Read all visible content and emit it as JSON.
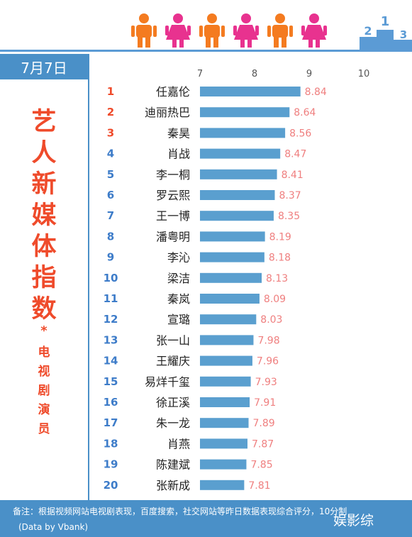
{
  "date_label": "7月7日",
  "title_big": [
    "艺",
    "人",
    "新",
    "媒",
    "体",
    "指",
    "数"
  ],
  "title_asterisk": "*",
  "title_small": [
    "电",
    "视",
    "剧",
    "演",
    "员"
  ],
  "footer_note": "备注：根据视频网站电视剧表现，百度搜索，社交网站等昨日数据表现综合评分，10分制",
  "footer_source": "(Data by Vbank)",
  "watermark": "娱影综",
  "colors": {
    "accent": "#4a90c8",
    "bar": "#5a9fcf",
    "title": "#ef4b2b",
    "value": "#ef7f7f",
    "rank_top": "#ef4b2b",
    "rank": "#3d7cc9"
  },
  "chart_data": {
    "type": "bar",
    "orientation": "horizontal",
    "xlim": [
      7,
      10
    ],
    "x_ticks": [
      7,
      8,
      9,
      10
    ],
    "grid": false,
    "ranks": [
      "1",
      "2",
      "3",
      "4",
      "5",
      "6",
      "7",
      "8",
      "9",
      "10",
      "11",
      "12",
      "13",
      "14",
      "15",
      "16",
      "17",
      "18",
      "19",
      "20"
    ],
    "categories": [
      "任嘉伦",
      "迪丽热巴",
      "秦昊",
      "肖战",
      "李一桐",
      "罗云熙",
      "王一博",
      "潘粤明",
      "李沁",
      "梁洁",
      "秦岚",
      "宣璐",
      "张一山",
      "王耀庆",
      "易烊千玺",
      "徐正溪",
      "朱一龙",
      "肖燕",
      "陈建斌",
      "张新成"
    ],
    "values": [
      8.84,
      8.64,
      8.56,
      8.47,
      8.41,
      8.37,
      8.35,
      8.19,
      8.18,
      8.13,
      8.09,
      8.03,
      7.98,
      7.96,
      7.93,
      7.91,
      7.89,
      7.87,
      7.85,
      7.81
    ],
    "value_labels": [
      "8.84",
      "8.64",
      "8.56",
      "8.47",
      "8.41",
      "8.37",
      "8.35",
      "8.19",
      "8.18",
      "8.13",
      "8.09",
      "8.03",
      "7.98",
      "7.96",
      "7.93",
      "7.91",
      "7.89",
      "7.87",
      "7.85",
      "7.81"
    ]
  }
}
